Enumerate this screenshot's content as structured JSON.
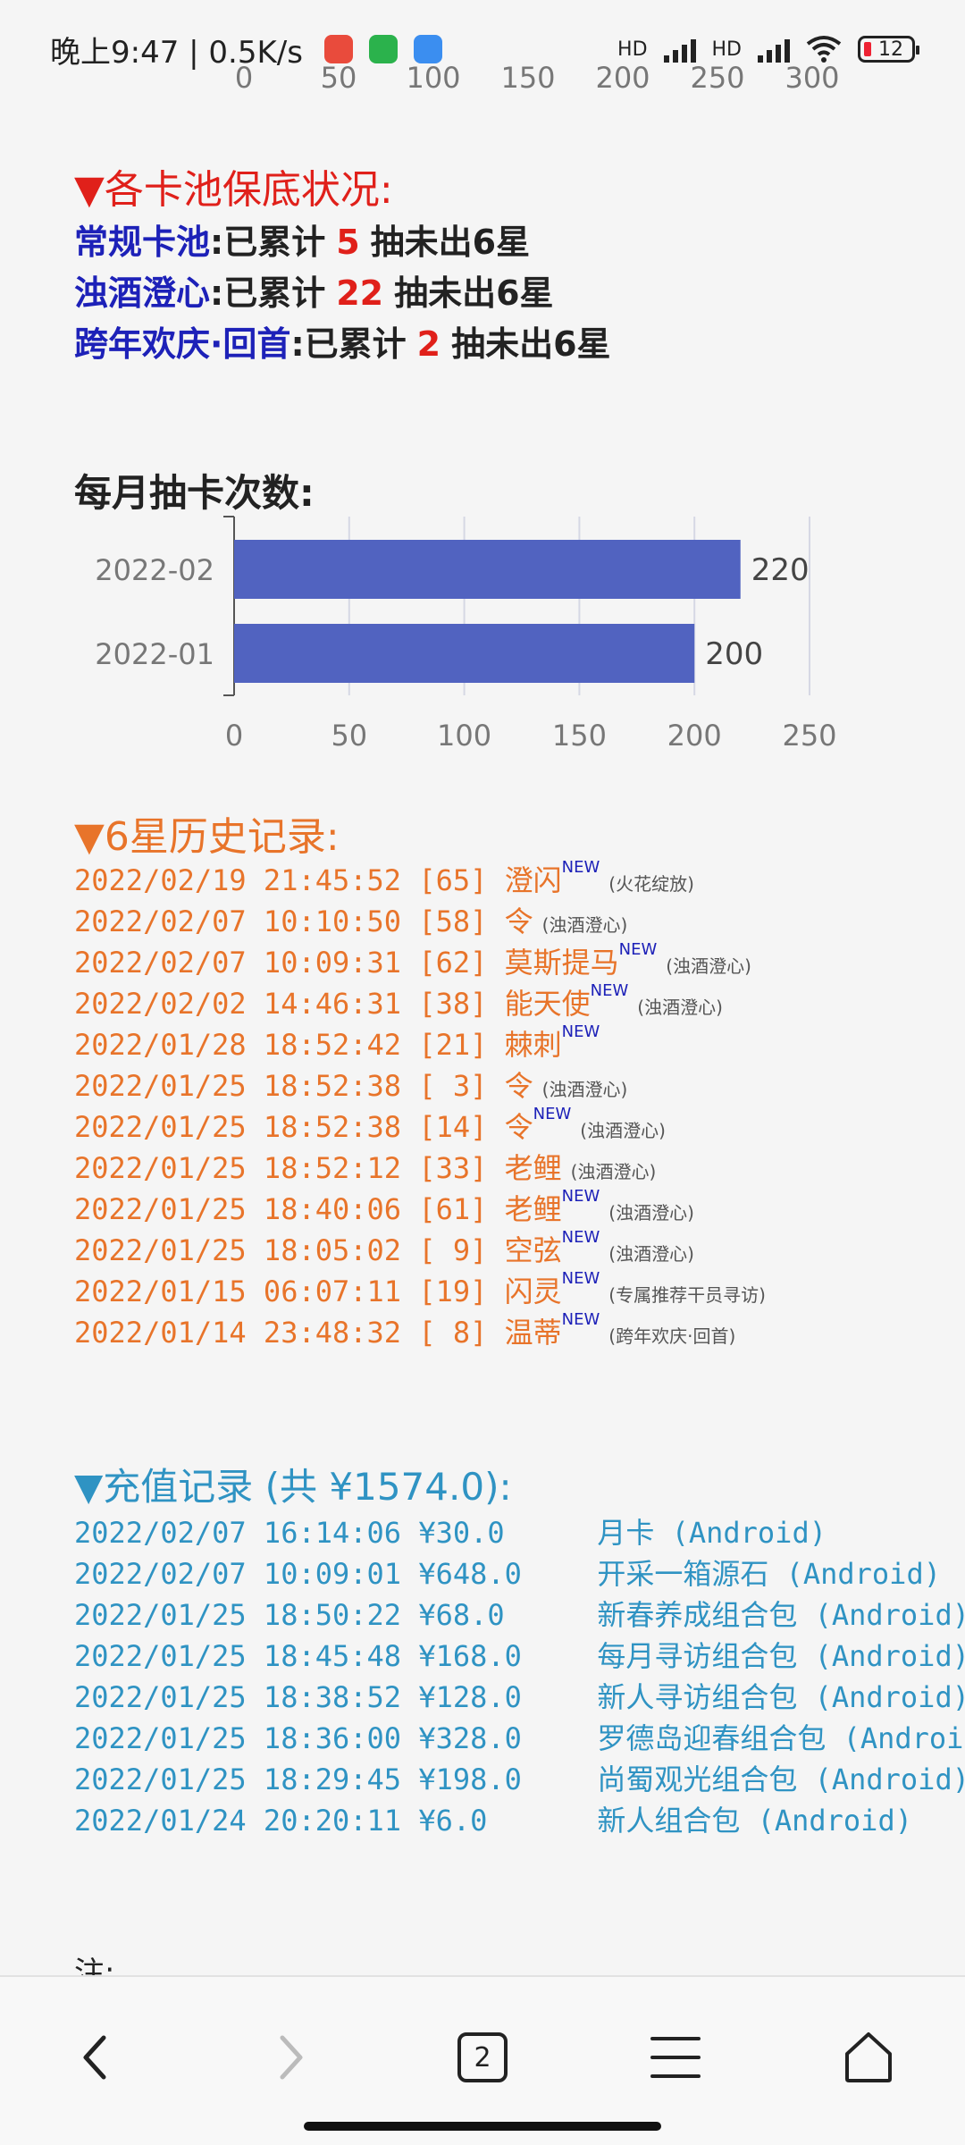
{
  "status_bar": {
    "time": "晚上9:47 | 0.5K/s",
    "signal_1": "HD",
    "signal_2": "HD",
    "battery": "12"
  },
  "top_axis_ticks": [
    "0",
    "50",
    "100",
    "150",
    "200",
    "250",
    "300"
  ],
  "pool_section": {
    "heading": "▼各卡池保底状况:",
    "rows": [
      {
        "name": "常规卡池",
        "prefix": ":已累计",
        "count": "5",
        "suffix": "抽未出6星"
      },
      {
        "name": "浊酒澄心",
        "prefix": ":已累计",
        "count": "22",
        "suffix": "抽未出6星"
      },
      {
        "name": "跨年欢庆·回首",
        "prefix": ":已累计",
        "count": "2",
        "suffix": "抽未出6星"
      }
    ]
  },
  "monthly_section": {
    "heading": "每月抽卡次数:"
  },
  "chart_data": {
    "type": "bar",
    "orientation": "horizontal",
    "categories": [
      "2022-02",
      "2022-01"
    ],
    "values": [
      220,
      200
    ],
    "value_labels": [
      "220",
      "200"
    ],
    "xlim": [
      0,
      250
    ],
    "x_ticks": [
      "0",
      "50",
      "100",
      "150",
      "200",
      "250"
    ],
    "grid": true,
    "bar_color": "#5163c0"
  },
  "six_star_section": {
    "heading": "▼6星历史记录:",
    "new_label": "NEW",
    "rows": [
      {
        "time": "2022/02/19 21:45:52",
        "pity": "[65]",
        "name": "澄闪",
        "new": true,
        "pool": "(火花绽放)"
      },
      {
        "time": "2022/02/07 10:10:50",
        "pity": "[58]",
        "name": "令",
        "new": false,
        "pool": "(浊酒澄心)"
      },
      {
        "time": "2022/02/07 10:09:31",
        "pity": "[62]",
        "name": "莫斯提马",
        "new": true,
        "pool": "(浊酒澄心)"
      },
      {
        "time": "2022/02/02 14:46:31",
        "pity": "[38]",
        "name": "能天使",
        "new": true,
        "pool": "(浊酒澄心)"
      },
      {
        "time": "2022/01/28 18:52:42",
        "pity": "[21]",
        "name": "棘刺",
        "new": true,
        "pool": ""
      },
      {
        "time": "2022/01/25 18:52:38",
        "pity": "[ 3]",
        "name": "令",
        "new": false,
        "pool": "(浊酒澄心)"
      },
      {
        "time": "2022/01/25 18:52:38",
        "pity": "[14]",
        "name": "令",
        "new": true,
        "pool": "(浊酒澄心)"
      },
      {
        "time": "2022/01/25 18:52:12",
        "pity": "[33]",
        "name": "老鲤",
        "new": false,
        "pool": "(浊酒澄心)"
      },
      {
        "time": "2022/01/25 18:40:06",
        "pity": "[61]",
        "name": "老鲤",
        "new": true,
        "pool": "(浊酒澄心)"
      },
      {
        "time": "2022/01/25 18:05:02",
        "pity": "[ 9]",
        "name": "空弦",
        "new": true,
        "pool": "(浊酒澄心)"
      },
      {
        "time": "2022/01/15 06:07:11",
        "pity": "[19]",
        "name": "闪灵",
        "new": true,
        "pool": "(专属推荐干员寻访)"
      },
      {
        "time": "2022/01/14 23:48:32",
        "pity": "[ 8]",
        "name": "温蒂",
        "new": true,
        "pool": "(跨年欢庆·回首)"
      }
    ]
  },
  "payment_section": {
    "heading": "▼充值记录 (共 ¥1574.0):",
    "rows": [
      {
        "time": "2022/02/07 16:14:06",
        "amount": "¥30.0",
        "item": "月卡 (Android)"
      },
      {
        "time": "2022/02/07 10:09:01",
        "amount": "¥648.0",
        "item": "开采一箱源石 (Android)"
      },
      {
        "time": "2022/01/25 18:50:22",
        "amount": "¥68.0",
        "item": "新春养成组合包 (Android)"
      },
      {
        "time": "2022/01/25 18:45:48",
        "amount": "¥168.0",
        "item": "每月寻访组合包 (Android)"
      },
      {
        "time": "2022/01/25 18:38:52",
        "amount": "¥128.0",
        "item": "新人寻访组合包 (Android)"
      },
      {
        "time": "2022/01/25 18:36:00",
        "amount": "¥328.0",
        "item": "罗德岛迎春组合包 (Android"
      },
      {
        "time": "2022/01/25 18:29:45",
        "amount": "¥198.0",
        "item": "尚蜀观光组合包 (Android)"
      },
      {
        "time": "2022/01/24 20:20:11",
        "amount": "¥6.0",
        "item": "新人组合包 (Android)"
      }
    ]
  },
  "note": "注:",
  "bottom_nav": {
    "tab_count": "2"
  },
  "colors": {
    "red": "#e0201a",
    "blue_name": "#1d21b8",
    "orange": "#e8742a",
    "teal": "#2f93c3",
    "bar": "#5163c0"
  }
}
